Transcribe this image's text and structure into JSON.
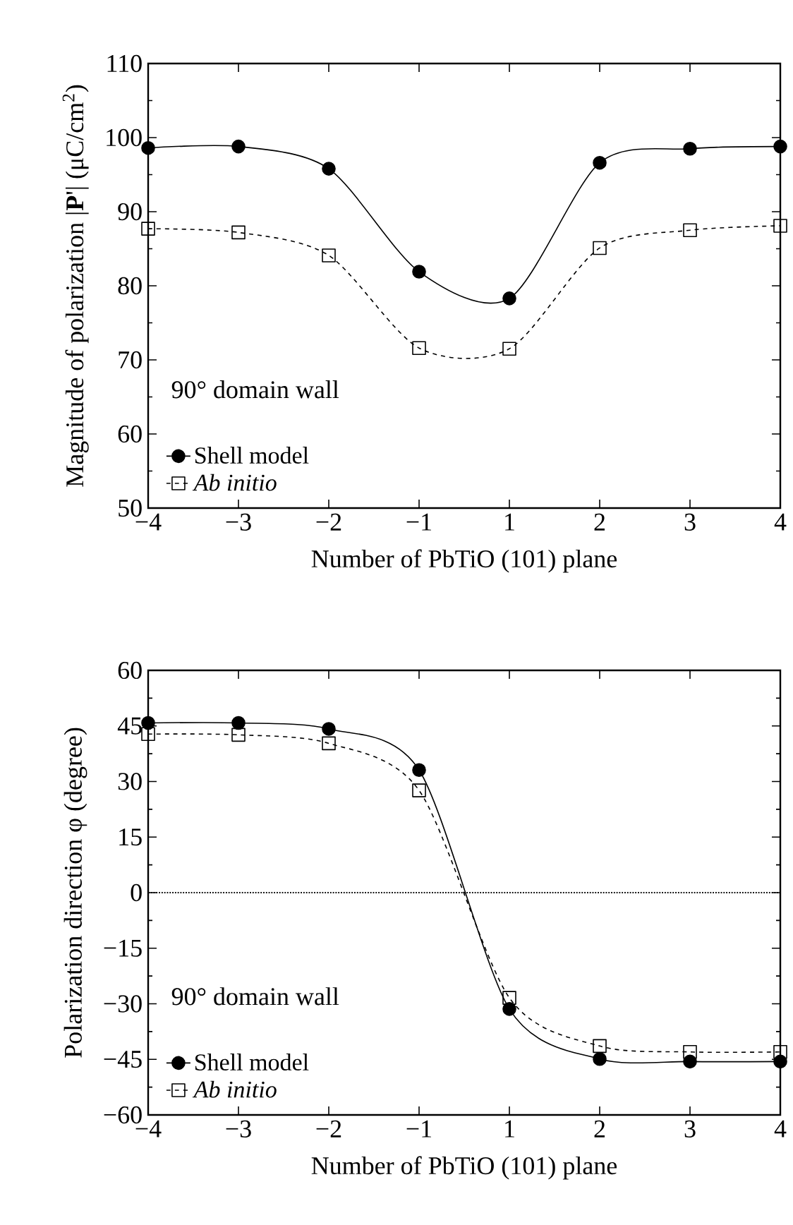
{
  "chart_data": [
    {
      "type": "line",
      "xlabel": "Number of PbTiO (101) plane",
      "ylabel": "Magnitude of polarization |**P**'| (μC/cm$^{2}$)",
      "annotations": [
        "90° domain wall"
      ],
      "categories": [
        "−4",
        "−3",
        "−2",
        "−1",
        "1",
        "2",
        "3",
        "4"
      ],
      "ylim": [
        50,
        110
      ],
      "yticks": [
        50,
        60,
        70,
        80,
        90,
        100,
        110
      ],
      "legend": "bottom left",
      "series": [
        {
          "name": "Shell model",
          "color": "#000000",
          "marker": "circle",
          "line_style": "solid",
          "values": [
            98.6,
            98.8,
            95.8,
            81.9,
            78.3,
            96.6,
            98.5,
            98.8
          ]
        },
        {
          "name": "*Ab initio*",
          "color": "#000000",
          "marker": "square",
          "line_style": "dashed",
          "values": [
            87.7,
            87.2,
            84.1,
            71.6,
            71.5,
            85.1,
            87.5,
            88.1
          ]
        }
      ]
    },
    {
      "type": "line",
      "xlabel": "Number of PbTiO (101) plane",
      "ylabel": "Polarization direction φ (degree)",
      "annotations": [
        "90° domain wall"
      ],
      "categories": [
        "−4",
        "−3",
        "−2",
        "−1",
        "1",
        "2",
        "3",
        "4"
      ],
      "ylim": [
        -60,
        60
      ],
      "yticks": [
        {
          "value": -60,
          "label": "−60"
        },
        {
          "value": -45,
          "label": "−45"
        },
        {
          "value": -30,
          "label": "−30"
        },
        {
          "value": -15,
          "label": "−15"
        },
        0,
        15,
        30,
        45,
        60
      ],
      "legend": "bottom left",
      "ref_lines": [
        {
          "axis": "y",
          "value": 0,
          "line_style": "dotted"
        }
      ],
      "series": [
        {
          "name": "Shell model",
          "color": "#000000",
          "marker": "circle",
          "line_style": "solid",
          "values": [
            45.8,
            45.8,
            44.2,
            33.1,
            -31.4,
            -44.9,
            -45.6,
            -45.6
          ]
        },
        {
          "name": "*Ab initio*",
          "color": "#000000",
          "marker": "square",
          "line_style": "dashed",
          "values": [
            42.8,
            42.6,
            40.3,
            27.6,
            -28.4,
            -41.4,
            -43,
            -43
          ]
        }
      ]
    }
  ]
}
